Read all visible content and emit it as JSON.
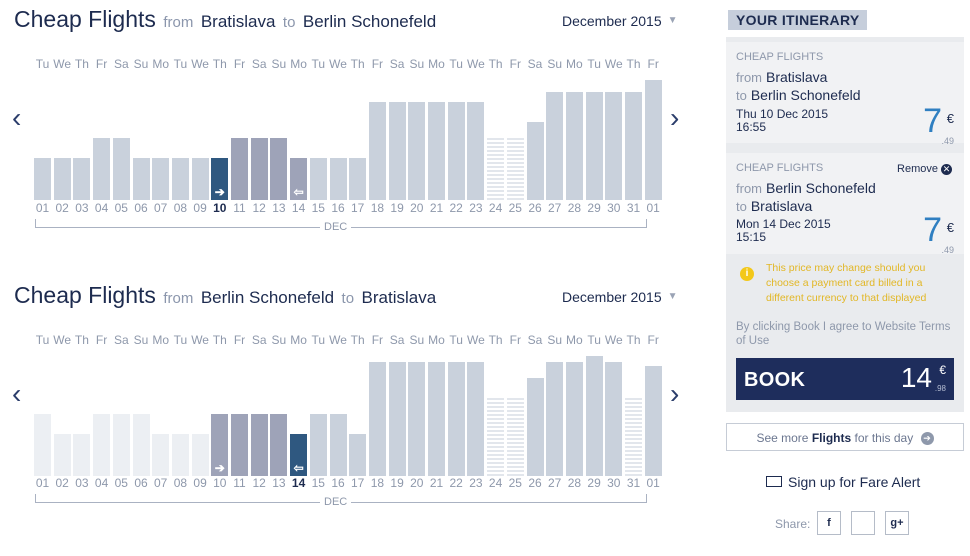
{
  "sections": [
    {
      "title": "Cheap Flights",
      "from_word": "from",
      "origin": "Bratislava",
      "to_word": "to",
      "destination": "Berlin Schonefeld",
      "month": "December 2015",
      "weekdays": [
        "Tu",
        "We",
        "Th",
        "Fr",
        "Sa",
        "Su",
        "Mo",
        "Tu",
        "We",
        "Th",
        "Fr",
        "Sa",
        "Su",
        "Mo",
        "Tu",
        "We",
        "Th",
        "Fr",
        "Sa",
        "Su",
        "Mo",
        "Tu",
        "We",
        "Th",
        "Fr",
        "Sa",
        "Su",
        "Mo",
        "Tu",
        "We",
        "Th",
        "Fr"
      ],
      "dates": [
        "01",
        "02",
        "03",
        "04",
        "05",
        "06",
        "07",
        "08",
        "09",
        "10",
        "11",
        "12",
        "13",
        "14",
        "15",
        "16",
        "17",
        "18",
        "19",
        "20",
        "21",
        "22",
        "23",
        "24",
        "25",
        "26",
        "27",
        "28",
        "29",
        "30",
        "31",
        "01"
      ],
      "axis_label": "DEC",
      "bar_levels": [
        0.22,
        0.22,
        0.22,
        0.42,
        0.42,
        0.22,
        0.22,
        0.22,
        0.22,
        0.22,
        0.42,
        0.42,
        0.42,
        0.22,
        0.22,
        0.22,
        0.22,
        0.78,
        0.78,
        0.78,
        0.78,
        0.78,
        0.78,
        0.42,
        0.42,
        0.58,
        0.88,
        0.88,
        0.88,
        0.88,
        0.88,
        1.0
      ],
      "bar_styles": [
        "light",
        "light",
        "light",
        "light",
        "light",
        "light",
        "light",
        "light",
        "light",
        "selected",
        "dark",
        "dark",
        "dark",
        "dark",
        "light",
        "light",
        "light",
        "light",
        "light",
        "light",
        "light",
        "light",
        "light",
        "stripe",
        "stripe",
        "light",
        "light",
        "light",
        "light",
        "light",
        "light",
        "light"
      ],
      "selected_index": 9,
      "selected_marker": "➔",
      "return_index": 13,
      "return_marker": "⇦"
    },
    {
      "title": "Cheap Flights",
      "from_word": "from",
      "origin": "Berlin Schonefeld",
      "to_word": "to",
      "destination": "Bratislava",
      "month": "December 2015",
      "weekdays": [
        "Tu",
        "We",
        "Th",
        "Fr",
        "Sa",
        "Su",
        "Mo",
        "Tu",
        "We",
        "Th",
        "Fr",
        "Sa",
        "Su",
        "Mo",
        "Tu",
        "We",
        "Th",
        "Fr",
        "Sa",
        "Su",
        "Mo",
        "Tu",
        "We",
        "Th",
        "Fr",
        "Sa",
        "Su",
        "Mo",
        "Tu",
        "We",
        "Th",
        "Fr"
      ],
      "dates": [
        "01",
        "02",
        "03",
        "04",
        "05",
        "06",
        "07",
        "08",
        "09",
        "10",
        "11",
        "12",
        "13",
        "14",
        "15",
        "16",
        "17",
        "18",
        "19",
        "20",
        "21",
        "22",
        "23",
        "24",
        "25",
        "26",
        "27",
        "28",
        "29",
        "30",
        "31",
        "01"
      ],
      "axis_label": "DEC",
      "bar_levels": [
        0.42,
        0.22,
        0.22,
        0.42,
        0.42,
        0.42,
        0.22,
        0.22,
        0.22,
        0.42,
        0.42,
        0.42,
        0.42,
        0.22,
        0.42,
        0.42,
        0.22,
        0.94,
        0.94,
        0.94,
        0.94,
        0.94,
        0.94,
        0.58,
        0.58,
        0.78,
        0.94,
        0.94,
        1.0,
        0.94,
        0.58,
        0.9
      ],
      "bar_styles": [
        "faint",
        "faint",
        "faint",
        "faint",
        "faint",
        "faint",
        "faint",
        "faint",
        "faint",
        "dark",
        "dark",
        "dark",
        "dark",
        "selected",
        "light",
        "light",
        "light",
        "light",
        "light",
        "light",
        "light",
        "light",
        "light",
        "stripe",
        "stripe",
        "light",
        "light",
        "light",
        "light",
        "light",
        "stripe",
        "light"
      ],
      "selected_index": 13,
      "selected_marker": "⇦",
      "return_index": 9,
      "return_marker": "➔"
    }
  ],
  "nav": {
    "prev_label": "‹",
    "next_label": "›"
  },
  "itinerary": {
    "heading": "YOUR ITINERARY",
    "flights": [
      {
        "category": "CHEAP FLIGHTS",
        "from_word": "from",
        "origin": "Bratislava",
        "to_word": "to",
        "destination": "Berlin Schonefeld",
        "date": "Thu 10 Dec 2015",
        "time": "16:55",
        "price": "7",
        "currency": "€",
        "cents": ".49"
      },
      {
        "category": "CHEAP FLIGHTS",
        "remove_label": "Remove",
        "remove_icon": "✕",
        "from_word": "from",
        "origin": "Berlin Schonefeld",
        "to_word": "to",
        "destination": "Bratislava",
        "date": "Mon 14 Dec 2015",
        "time": "15:15",
        "price": "7",
        "currency": "€",
        "cents": ".49"
      }
    ],
    "warning": "This price may change should you choose a payment card billed in a different currency to that displayed",
    "warning_icon": "i",
    "terms": "By clicking Book I agree to Website Terms of Use",
    "book_label": "BOOK",
    "total": "14",
    "total_currency": "€",
    "total_cents": ".98"
  },
  "see_more": {
    "prefix": "See more",
    "bold": "Flights",
    "suffix": "for this day",
    "icon": "➔"
  },
  "fare_alert_label": "Sign up for Fare Alert",
  "share_label": "Share:",
  "share_buttons": [
    "f",
    "",
    "g+"
  ],
  "colors": {
    "navy": "#1e2d5c",
    "price_blue": "#2f7fc1",
    "bar_light": "#c9d1dc",
    "bar_dark": "#9ea3b8",
    "selected": "#2f5880",
    "warning": "#e2b726"
  }
}
